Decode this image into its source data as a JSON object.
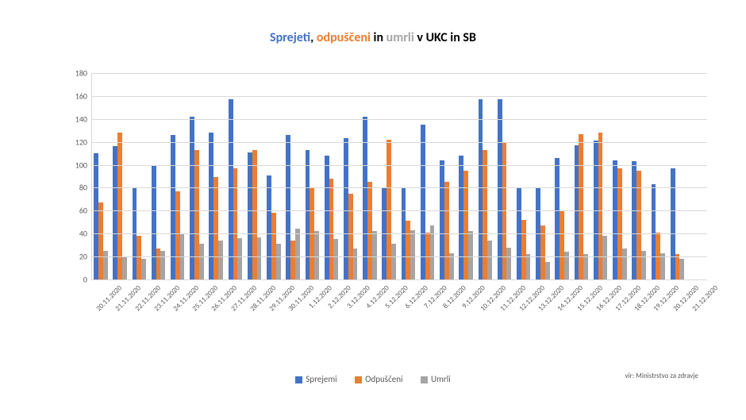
{
  "chart": {
    "type": "bar",
    "title_parts": {
      "sprejeti": "Sprejeti",
      "comma": ", ",
      "odpusceni": "odpuščeni",
      "in_word": " in ",
      "umrli": "umrli",
      "tail": " v UKC in SB"
    },
    "title_fontsize": 16,
    "background_color": "#ffffff",
    "grid_color": "#d9d9d9",
    "axis_color": "#d9d9d9",
    "text_color": "#595959",
    "ylim": [
      0,
      180
    ],
    "ytick_step": 20,
    "yticks": [
      0,
      20,
      40,
      60,
      80,
      100,
      120,
      140,
      160,
      180
    ],
    "label_fontsize": 10,
    "categories": [
      "20.11.2020",
      "21.11.2020",
      "22.11.2020",
      "23.11.2020",
      "24.11.2020",
      "25.11.2020",
      "26.11.2020",
      "27.11.2020",
      "28.11.2020",
      "29.11.2020",
      "30.11.2020",
      "1.12.2020",
      "2.12.2020",
      "3.12.2020",
      "4.12.2020",
      "5.12.2020",
      "6.12.2020",
      "7.12.2020",
      "8.12.2020",
      "9.12.2020",
      "10.12.2020",
      "11.12.2020",
      "12.12.2020",
      "13.12.2020",
      "14.12.2020",
      "15.12.2020",
      "16.12.2020",
      "17.12.2020",
      "18.12.2020",
      "19.12.2020",
      "20.12.2020",
      "21.12.2020"
    ],
    "series": [
      {
        "name": "Sprejemi",
        "color": "#4472c4",
        "values": [
          110,
          116,
          80,
          100,
          126,
          142,
          128,
          157,
          111,
          91,
          126,
          113,
          108,
          123,
          142,
          80,
          80,
          135,
          104,
          108,
          157,
          157,
          80,
          80,
          106,
          117,
          121,
          104,
          103,
          83,
          97,
          0
        ]
      },
      {
        "name": "Odpuščeni",
        "color": "#ed7d31",
        "values": [
          67,
          128,
          38,
          27,
          77,
          113,
          89,
          97,
          113,
          58,
          34,
          80,
          88,
          75,
          85,
          122,
          51,
          41,
          85,
          95,
          113,
          120,
          52,
          47,
          60,
          127,
          128,
          97,
          95,
          41,
          22,
          0
        ]
      },
      {
        "name": "Umrli",
        "color": "#a5a5a5",
        "values": [
          25,
          20,
          18,
          25,
          40,
          31,
          34,
          36,
          37,
          31,
          44,
          42,
          35,
          27,
          42,
          31,
          43,
          47,
          23,
          42,
          34,
          28,
          22,
          15,
          24,
          22,
          38,
          27,
          25,
          23,
          18,
          0
        ]
      }
    ],
    "bar_rel_width": 0.24,
    "group_rel_width": 0.82,
    "legend_labels": [
      "Sprejemi",
      "Odpuščeni",
      "Umrli"
    ],
    "source_text": "vir: Ministrstvo za zdravje"
  }
}
